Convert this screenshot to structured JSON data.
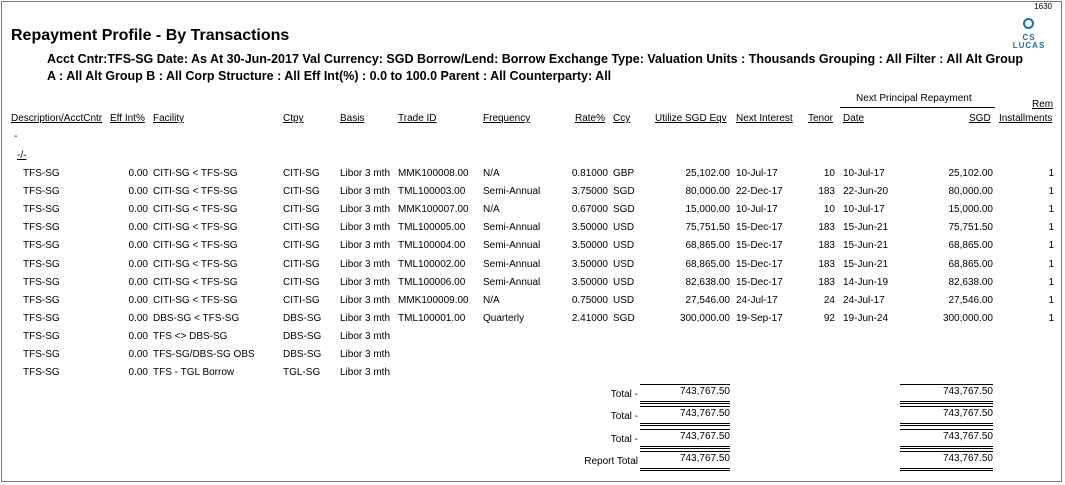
{
  "page_number": "1630",
  "logo": {
    "line1": "CS",
    "line2": "LUCAS"
  },
  "title": "Repayment Profile - By Transactions",
  "subtitle_line1": "Acct Cntr:TFS-SG Date: As At  30-Jun-2017 Val Currency: SGD Borrow/Lend: Borrow Exchange Type: Valuation Units : Thousands Grouping : All Filter : All Alt Group",
  "subtitle_line2": "A : All Alt Group B : All Corp Structure : All Eff Int(%) : 0.0 to 100.0 Parent : All Counterparty: All",
  "group_header": "Next Principal Repayment",
  "columns": {
    "description": "Description/AcctCntr",
    "eff_int": "Eff Int%",
    "facility": "Facility",
    "ctpy": "Ctpy",
    "basis": "Basis",
    "trade_id": "Trade ID",
    "frequency": "Frequency",
    "rate": "Rate%",
    "ccy": "Ccy",
    "utilize": "Utilize SGD Eqv",
    "next_interest": "Next Interest",
    "tenor": "Tenor",
    "date": "Date",
    "sgd": "SGD",
    "rem": "Rem",
    "installments": "Installments"
  },
  "group_markers": [
    "-",
    "-/-"
  ],
  "rows": [
    {
      "desc": "TFS-SG",
      "eff": "0.00",
      "facility": "CITI-SG < TFS-SG",
      "ctpy": "CITI-SG",
      "basis": "Libor 3 mth",
      "trade": "MMK100008.00",
      "freq": "N/A",
      "rate": "0.81000",
      "ccy": "GBP",
      "utilize": "25,102.00",
      "next_int": "10-Jul-17",
      "tenor": "10",
      "date": "10-Jul-17",
      "sgd": "25,102.00",
      "rem": "1"
    },
    {
      "desc": "TFS-SG",
      "eff": "0.00",
      "facility": "CITI-SG < TFS-SG",
      "ctpy": "CITI-SG",
      "basis": "Libor 3 mth",
      "trade": "TML100003.00",
      "freq": "Semi-Annual",
      "rate": "3.75000",
      "ccy": "SGD",
      "utilize": "80,000.00",
      "next_int": "22-Dec-17",
      "tenor": "183",
      "date": "22-Jun-20",
      "sgd": "80,000.00",
      "rem": "1"
    },
    {
      "desc": "TFS-SG",
      "eff": "0.00",
      "facility": "CITI-SG < TFS-SG",
      "ctpy": "CITI-SG",
      "basis": "Libor 3 mth",
      "trade": "MMK100007.00",
      "freq": "N/A",
      "rate": "0.67000",
      "ccy": "SGD",
      "utilize": "15,000.00",
      "next_int": "10-Jul-17",
      "tenor": "10",
      "date": "10-Jul-17",
      "sgd": "15,000.00",
      "rem": "1"
    },
    {
      "desc": "TFS-SG",
      "eff": "0.00",
      "facility": "CITI-SG < TFS-SG",
      "ctpy": "CITI-SG",
      "basis": "Libor 3 mth",
      "trade": "TML100005.00",
      "freq": "Semi-Annual",
      "rate": "3.50000",
      "ccy": "USD",
      "utilize": "75,751.50",
      "next_int": "15-Dec-17",
      "tenor": "183",
      "date": "15-Jun-21",
      "sgd": "75,751.50",
      "rem": "1"
    },
    {
      "desc": "TFS-SG",
      "eff": "0.00",
      "facility": "CITI-SG < TFS-SG",
      "ctpy": "CITI-SG",
      "basis": "Libor 3 mth",
      "trade": "TML100004.00",
      "freq": "Semi-Annual",
      "rate": "3.50000",
      "ccy": "USD",
      "utilize": "68,865.00",
      "next_int": "15-Dec-17",
      "tenor": "183",
      "date": "15-Jun-21",
      "sgd": "68,865.00",
      "rem": "1"
    },
    {
      "desc": "TFS-SG",
      "eff": "0.00",
      "facility": "CITI-SG < TFS-SG",
      "ctpy": "CITI-SG",
      "basis": "Libor 3 mth",
      "trade": "TML100002.00",
      "freq": "Semi-Annual",
      "rate": "3.50000",
      "ccy": "USD",
      "utilize": "68,865.00",
      "next_int": "15-Dec-17",
      "tenor": "183",
      "date": "15-Jun-21",
      "sgd": "68,865.00",
      "rem": "1"
    },
    {
      "desc": "TFS-SG",
      "eff": "0.00",
      "facility": "CITI-SG < TFS-SG",
      "ctpy": "CITI-SG",
      "basis": "Libor 3 mth",
      "trade": "TML100006.00",
      "freq": "Semi-Annual",
      "rate": "3.50000",
      "ccy": "USD",
      "utilize": "82,638.00",
      "next_int": "15-Dec-17",
      "tenor": "183",
      "date": "14-Jun-19",
      "sgd": "82,638.00",
      "rem": "1"
    },
    {
      "desc": "TFS-SG",
      "eff": "0.00",
      "facility": "CITI-SG < TFS-SG",
      "ctpy": "CITI-SG",
      "basis": "Libor 3 mth",
      "trade": "MMK100009.00",
      "freq": "N/A",
      "rate": "0.75000",
      "ccy": "USD",
      "utilize": "27,546.00",
      "next_int": "24-Jul-17",
      "tenor": "24",
      "date": "24-Jul-17",
      "sgd": "27,546.00",
      "rem": "1"
    },
    {
      "desc": "TFS-SG",
      "eff": "0.00",
      "facility": "DBS-SG < TFS-SG",
      "ctpy": "DBS-SG",
      "basis": "Libor 3 mth",
      "trade": "TML100001.00",
      "freq": "Quarterly",
      "rate": "2.41000",
      "ccy": "SGD",
      "utilize": "300,000.00",
      "next_int": "19-Sep-17",
      "tenor": "92",
      "date": "19-Jun-24",
      "sgd": "300,000.00",
      "rem": "1"
    },
    {
      "desc": "TFS-SG",
      "eff": "0.00",
      "facility": "TFS <> DBS-SG",
      "ctpy": "DBS-SG",
      "basis": "Libor 3 mth",
      "trade": "",
      "freq": "",
      "rate": "",
      "ccy": "",
      "utilize": "",
      "next_int": "",
      "tenor": "",
      "date": "",
      "sgd": "",
      "rem": ""
    },
    {
      "desc": "TFS-SG",
      "eff": "0.00",
      "facility": "TFS-SG/DBS-SG OBS",
      "ctpy": "DBS-SG",
      "basis": "Libor 3 mth",
      "trade": "",
      "freq": "",
      "rate": "",
      "ccy": "",
      "utilize": "",
      "next_int": "",
      "tenor": "",
      "date": "",
      "sgd": "",
      "rem": ""
    },
    {
      "desc": "TFS-SG",
      "eff": "0.00",
      "facility": "TFS - TGL Borrow",
      "ctpy": "TGL-SG",
      "basis": "Libor 3 mth",
      "trade": "",
      "freq": "",
      "rate": "",
      "ccy": "",
      "utilize": "",
      "next_int": "",
      "tenor": "",
      "date": "",
      "sgd": "",
      "rem": ""
    }
  ],
  "totals": [
    {
      "label": "Total -",
      "utilize": "743,767.50",
      "sgd": "743,767.50"
    },
    {
      "label": "Total -",
      "utilize": "743,767.50",
      "sgd": "743,767.50"
    },
    {
      "label": "Total -",
      "utilize": "743,767.50",
      "sgd": "743,767.50"
    },
    {
      "label": "Report Total",
      "utilize": "743,767.50",
      "sgd": "743,767.50"
    }
  ]
}
